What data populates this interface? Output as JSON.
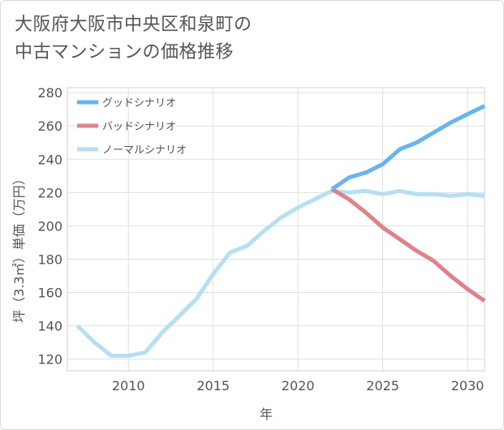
{
  "title_lines": [
    "大阪府大阪市中央区和泉町の",
    "中古マンションの価格推移"
  ],
  "colors": {
    "good": "#64b5f6",
    "bad": "#e57f88",
    "normal": "#b3e0f2",
    "axis_text": "#555555",
    "grid": "#e0e0e0"
  },
  "chart_data": {
    "type": "line",
    "title": "大阪府大阪市中央区和泉町の中古マンションの価格推移",
    "xlabel": "年",
    "ylabel": "坪（3.3㎡）単価（万円）",
    "xlim": [
      2006.4,
      2031
    ],
    "ylim": [
      113,
      283
    ],
    "xticks": [
      2010,
      2015,
      2020,
      2025,
      2030
    ],
    "yticks": [
      120,
      140,
      160,
      180,
      200,
      220,
      240,
      260,
      280
    ],
    "grid": true,
    "legend_position": "top-left",
    "series": [
      {
        "name": "グッドシナリオ",
        "color": "#64b5f6",
        "x": [
          2022,
          2023,
          2024,
          2025,
          2026,
          2027,
          2028,
          2029,
          2030,
          2031
        ],
        "y": [
          222,
          229,
          232,
          237,
          246,
          250,
          256,
          262,
          267,
          272
        ]
      },
      {
        "name": "バッドシナリオ",
        "color": "#e57f88",
        "x": [
          2022,
          2023,
          2024,
          2025,
          2026,
          2027,
          2028,
          2029,
          2030,
          2031
        ],
        "y": [
          222,
          216,
          208,
          199,
          192,
          185,
          179,
          170,
          162,
          155
        ]
      },
      {
        "name": "ノーマルシナリオ",
        "color": "#b3e0f2",
        "x": [
          2007,
          2008,
          2009,
          2010,
          2011,
          2012,
          2013,
          2014,
          2015,
          2016,
          2017,
          2018,
          2019,
          2020,
          2021,
          2022,
          2023,
          2024,
          2025,
          2026,
          2027,
          2028,
          2029,
          2030,
          2031
        ],
        "y": [
          140,
          130,
          122,
          122,
          124,
          136,
          146,
          156,
          171,
          184,
          188,
          197,
          205,
          211,
          216,
          221,
          220,
          221,
          219,
          221,
          219,
          219,
          218,
          219,
          218
        ]
      }
    ]
  }
}
